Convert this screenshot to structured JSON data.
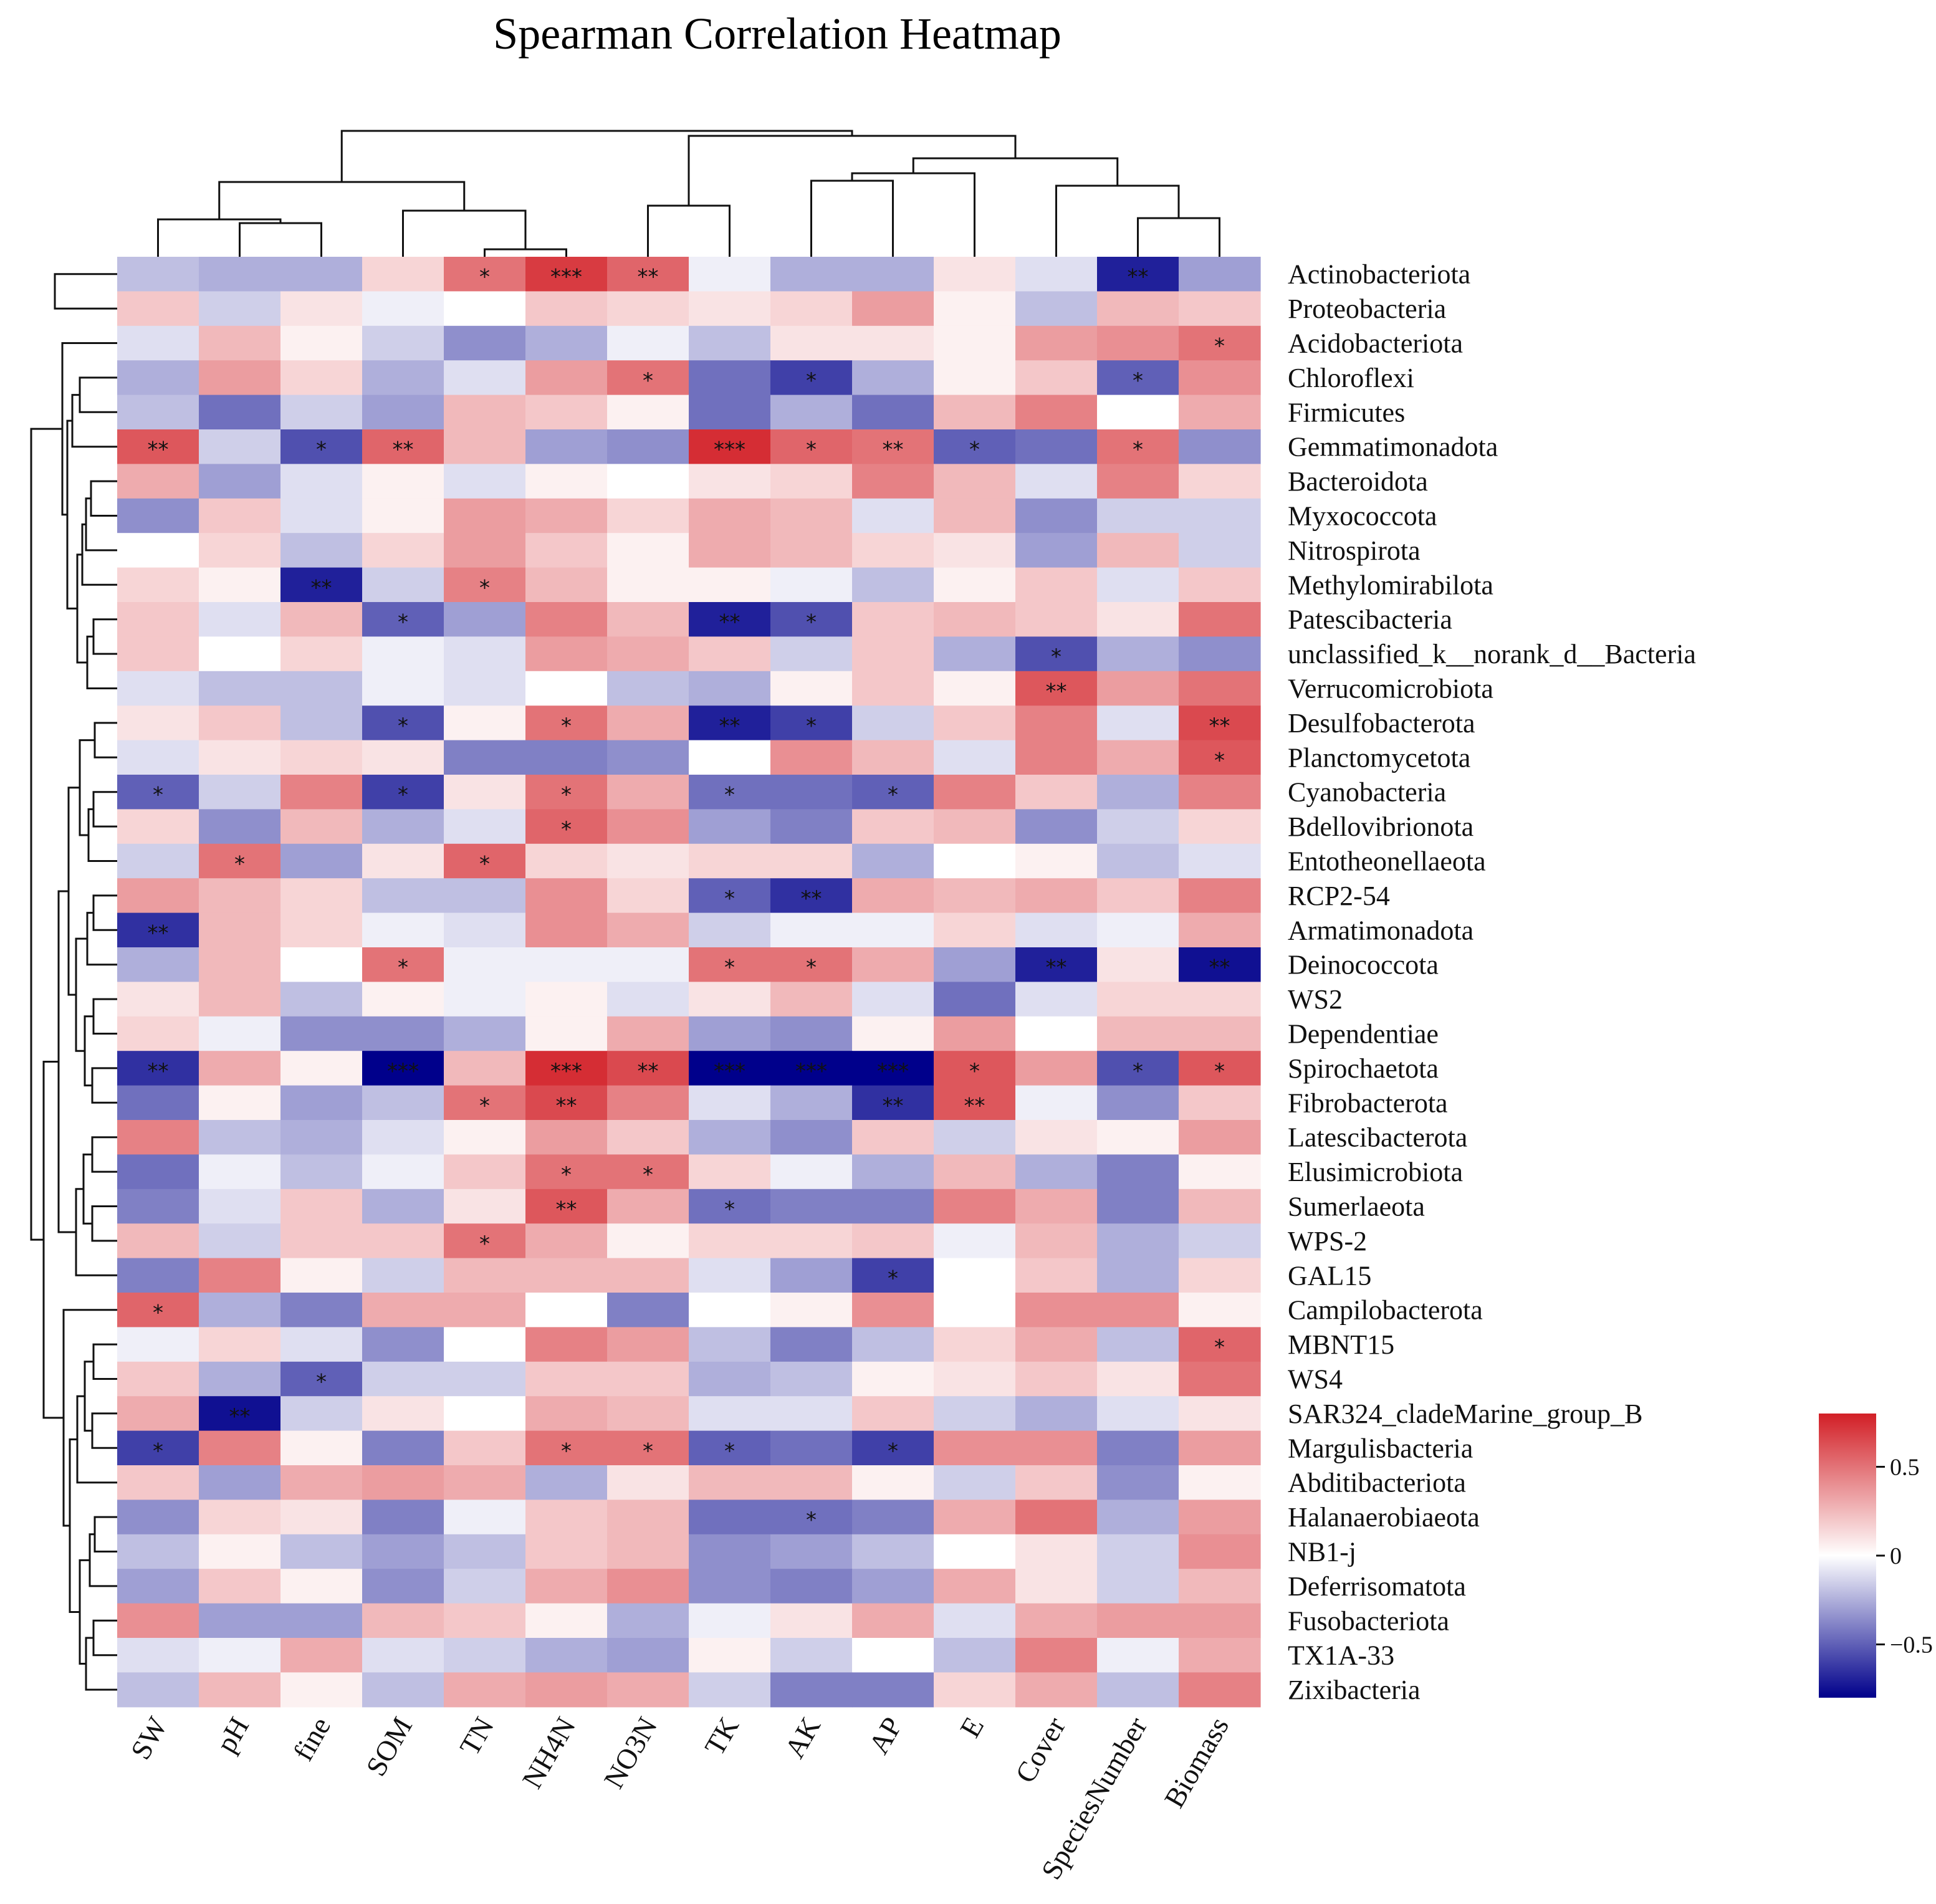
{
  "chart_data": {
    "type": "heatmap",
    "title": "Spearman Correlation Heatmap",
    "columns": [
      "SW",
      "pH",
      "fine",
      "SOM",
      "TN",
      "NH4N",
      "NO3N",
      "TK",
      "AK",
      "AP",
      "E",
      "Cover",
      "SpeciesNumber",
      "Biomass"
    ],
    "rows": [
      "Actinobacteriota",
      "Proteobacteria",
      "Acidobacteriota",
      "Chloroflexi",
      "Firmicutes",
      "Gemmatimonadota",
      "Bacteroidota",
      "Myxococcota",
      "Nitrospirota",
      "Methylomirabilota",
      "Patescibacteria",
      "unclassified_k__norank_d__Bacteria",
      "Verrucomicrobiota",
      "Desulfobacterota",
      "Planctomycetota",
      "Cyanobacteria",
      "Bdellovibrionota",
      "Entotheonellaeota",
      "RCP2-54",
      "Armatimonadota",
      "Deinococcota",
      "WS2",
      "Dependentiae",
      "Spirochaetota",
      "Fibrobacterota",
      "Latescibacterota",
      "Elusimicrobiota",
      "Sumerlaeota",
      "WPS-2",
      "GAL15",
      "Campilobacterota",
      "MBNT15",
      "WS4",
      "SAR324_cladeMarine_group_B",
      "Margulisbacteria",
      "Abditibacteriota",
      "Halanaerobiaeota",
      "NB1-j",
      "Deferrisomatota",
      "Fusobacteriota",
      "TX1A-33",
      "Zixibacteria"
    ],
    "values": [
      [
        -0.2,
        -0.25,
        -0.25,
        0.15,
        0.5,
        0.7,
        0.55,
        -0.05,
        -0.25,
        -0.25,
        0.1,
        -0.1,
        -0.7,
        -0.3
      ],
      [
        0.2,
        -0.15,
        0.1,
        -0.05,
        0,
        0.2,
        0.15,
        0.1,
        0.15,
        0.35,
        0.05,
        -0.2,
        0.25,
        0.2
      ],
      [
        -0.1,
        0.25,
        0.05,
        -0.15,
        -0.35,
        -0.25,
        -0.05,
        -0.2,
        0.1,
        0.1,
        0.05,
        0.35,
        0.4,
        0.5
      ],
      [
        -0.25,
        0.35,
        0.15,
        -0.25,
        -0.1,
        0.35,
        0.5,
        -0.45,
        -0.6,
        -0.25,
        0.05,
        0.2,
        -0.5,
        0.4
      ],
      [
        -0.2,
        -0.45,
        -0.15,
        -0.3,
        0.25,
        0.2,
        0.05,
        -0.45,
        -0.25,
        -0.45,
        0.25,
        0.45,
        0,
        0.3
      ],
      [
        0.6,
        -0.15,
        -0.55,
        0.55,
        0.25,
        -0.3,
        -0.35,
        0.75,
        0.55,
        0.5,
        -0.5,
        -0.45,
        0.5,
        -0.35
      ],
      [
        0.3,
        -0.3,
        -0.1,
        0.05,
        -0.1,
        0.05,
        0,
        0.1,
        0.15,
        0.45,
        0.25,
        -0.1,
        0.45,
        0.15
      ],
      [
        -0.35,
        0.2,
        -0.1,
        0.05,
        0.35,
        0.3,
        0.15,
        0.3,
        0.25,
        -0.1,
        0.25,
        -0.35,
        -0.15,
        -0.15
      ],
      [
        0,
        0.15,
        -0.2,
        0.15,
        0.35,
        0.2,
        0.05,
        0.3,
        0.25,
        0.15,
        0.1,
        -0.3,
        0.25,
        -0.15
      ],
      [
        0.15,
        0.05,
        -0.7,
        -0.15,
        0.45,
        0.25,
        0.05,
        0.05,
        -0.05,
        -0.2,
        0.05,
        0.2,
        -0.1,
        0.2
      ],
      [
        0.2,
        -0.1,
        0.25,
        -0.5,
        -0.3,
        0.45,
        0.25,
        -0.7,
        -0.55,
        0.2,
        0.25,
        0.2,
        0.1,
        0.5
      ],
      [
        0.2,
        0,
        0.15,
        -0.05,
        -0.1,
        0.35,
        0.3,
        0.2,
        -0.15,
        0.2,
        -0.25,
        -0.55,
        -0.25,
        -0.35
      ],
      [
        -0.1,
        -0.2,
        -0.2,
        -0.05,
        -0.1,
        0,
        -0.2,
        -0.25,
        0.05,
        0.2,
        0.05,
        0.6,
        0.35,
        0.5
      ],
      [
        0.1,
        0.2,
        -0.2,
        -0.55,
        0.05,
        0.5,
        0.3,
        -0.7,
        -0.6,
        -0.15,
        0.2,
        0.45,
        -0.1,
        0.65
      ],
      [
        -0.1,
        0.1,
        0.15,
        0.1,
        -0.4,
        -0.4,
        -0.35,
        0,
        0.4,
        0.25,
        -0.1,
        0.45,
        0.3,
        0.6
      ],
      [
        -0.5,
        -0.15,
        0.45,
        -0.6,
        0.1,
        0.5,
        0.3,
        -0.45,
        -0.45,
        -0.5,
        0.45,
        0.2,
        -0.25,
        0.45
      ],
      [
        0.15,
        -0.35,
        0.25,
        -0.25,
        -0.1,
        0.55,
        0.4,
        -0.3,
        -0.4,
        0.2,
        0.25,
        -0.35,
        -0.15,
        0.15
      ],
      [
        -0.15,
        0.5,
        -0.3,
        0.1,
        0.55,
        0.15,
        0.1,
        0.15,
        0.15,
        -0.25,
        0,
        0.05,
        -0.2,
        -0.1
      ],
      [
        0.35,
        0.25,
        0.15,
        -0.2,
        -0.2,
        0.4,
        0.15,
        -0.5,
        -0.65,
        0.3,
        0.25,
        0.3,
        0.2,
        0.45
      ],
      [
        -0.65,
        0.25,
        0.15,
        -0.05,
        -0.1,
        0.4,
        0.3,
        -0.15,
        -0.05,
        -0.05,
        0.15,
        -0.1,
        -0.05,
        0.3
      ],
      [
        -0.25,
        0.25,
        0,
        0.5,
        -0.05,
        -0.05,
        -0.05,
        0.5,
        0.5,
        0.3,
        -0.3,
        -0.7,
        0.1,
        -0.75
      ],
      [
        0.1,
        0.25,
        -0.2,
        0.05,
        -0.05,
        0.05,
        -0.1,
        0.1,
        0.25,
        -0.1,
        -0.45,
        -0.1,
        0.15,
        0.15
      ],
      [
        0.15,
        -0.05,
        -0.35,
        -0.35,
        -0.25,
        0.05,
        0.3,
        -0.3,
        -0.35,
        0.05,
        0.35,
        0,
        0.25,
        0.25
      ],
      [
        -0.65,
        0.3,
        0.05,
        -0.85,
        0.25,
        0.75,
        0.65,
        -0.85,
        -0.85,
        -0.85,
        0.6,
        0.35,
        -0.55,
        0.6
      ],
      [
        -0.45,
        0.05,
        -0.3,
        -0.2,
        0.5,
        0.65,
        0.45,
        -0.1,
        -0.25,
        -0.65,
        0.6,
        -0.05,
        -0.35,
        0.2
      ],
      [
        0.45,
        -0.2,
        -0.25,
        -0.1,
        0.05,
        0.35,
        0.2,
        -0.25,
        -0.35,
        0.2,
        -0.15,
        0.1,
        0.05,
        0.35
      ],
      [
        -0.45,
        -0.05,
        -0.2,
        -0.05,
        0.2,
        0.5,
        0.5,
        0.15,
        -0.05,
        -0.25,
        0.25,
        -0.25,
        -0.4,
        0.05
      ],
      [
        -0.4,
        -0.1,
        0.2,
        -0.25,
        0.1,
        0.6,
        0.3,
        -0.45,
        -0.4,
        -0.4,
        0.45,
        0.3,
        -0.4,
        0.25
      ],
      [
        0.25,
        -0.15,
        0.2,
        0.2,
        0.5,
        0.3,
        0.05,
        0.15,
        0.15,
        0.2,
        -0.05,
        0.25,
        -0.25,
        -0.15
      ],
      [
        -0.4,
        0.45,
        0.05,
        -0.15,
        0.25,
        0.25,
        0.25,
        -0.1,
        -0.3,
        -0.6,
        0,
        0.2,
        -0.25,
        0.15
      ],
      [
        0.55,
        -0.25,
        -0.4,
        0.3,
        0.3,
        0,
        -0.4,
        0,
        0.05,
        0.4,
        0,
        0.4,
        0.4,
        0.05
      ],
      [
        -0.05,
        0.15,
        -0.1,
        -0.35,
        0,
        0.45,
        0.35,
        -0.2,
        -0.4,
        -0.2,
        0.15,
        0.3,
        -0.2,
        0.55
      ],
      [
        0.2,
        -0.25,
        -0.5,
        -0.15,
        -0.15,
        0.2,
        0.2,
        -0.25,
        -0.2,
        0.05,
        0.1,
        0.2,
        0.1,
        0.5
      ],
      [
        0.3,
        -0.75,
        -0.15,
        0.1,
        0,
        0.3,
        0.25,
        -0.1,
        -0.1,
        0.2,
        -0.15,
        -0.25,
        -0.1,
        0.1
      ],
      [
        -0.6,
        0.45,
        0.05,
        -0.4,
        0.2,
        0.5,
        0.5,
        -0.5,
        -0.45,
        -0.6,
        0.4,
        0.4,
        -0.4,
        0.35
      ],
      [
        0.2,
        -0.3,
        0.3,
        0.35,
        0.3,
        -0.25,
        0.1,
        0.25,
        0.25,
        0.05,
        -0.15,
        0.2,
        -0.35,
        0.05
      ],
      [
        -0.35,
        0.15,
        0.1,
        -0.4,
        -0.05,
        0.2,
        0.25,
        -0.45,
        -0.45,
        -0.4,
        0.3,
        0.5,
        -0.25,
        0.35
      ],
      [
        -0.2,
        0.05,
        -0.2,
        -0.3,
        -0.2,
        0.2,
        0.25,
        -0.35,
        -0.3,
        -0.2,
        0,
        0.1,
        -0.15,
        0.4
      ],
      [
        -0.3,
        0.2,
        0.05,
        -0.35,
        -0.15,
        0.3,
        0.4,
        -0.35,
        -0.4,
        -0.3,
        0.3,
        0.1,
        -0.15,
        0.25
      ],
      [
        0.4,
        -0.3,
        -0.3,
        0.25,
        0.2,
        0.05,
        -0.25,
        -0.05,
        0.1,
        0.3,
        -0.1,
        0.3,
        0.35,
        0.35
      ],
      [
        -0.1,
        -0.05,
        0.3,
        -0.1,
        -0.15,
        -0.25,
        -0.3,
        0.05,
        -0.15,
        0,
        -0.2,
        0.45,
        -0.05,
        0.3
      ],
      [
        -0.2,
        0.25,
        0.05,
        -0.2,
        0.3,
        0.35,
        0.3,
        -0.15,
        -0.4,
        -0.4,
        0.15,
        0.3,
        -0.2,
        0.45
      ]
    ],
    "significance": [
      [
        "",
        "",
        "",
        "",
        "*",
        "***",
        "**",
        "",
        "",
        "",
        "",
        "",
        "**",
        ""
      ],
      [
        "",
        "",
        "",
        "",
        "",
        "",
        "",
        "",
        "",
        "",
        "",
        "",
        "",
        ""
      ],
      [
        "",
        "",
        "",
        "",
        "",
        "",
        "",
        "",
        "",
        "",
        "",
        "",
        "",
        "*"
      ],
      [
        "",
        "",
        "",
        "",
        "",
        "",
        "*",
        "",
        "*",
        "",
        "",
        "",
        "*",
        ""
      ],
      [
        "",
        "",
        "",
        "",
        "",
        "",
        "",
        "",
        "",
        "",
        "",
        "",
        "",
        ""
      ],
      [
        "**",
        "",
        "*",
        "**",
        "",
        "",
        "",
        "***",
        "*",
        "**",
        "*",
        "",
        "*",
        ""
      ],
      [
        "",
        "",
        "",
        "",
        "",
        "",
        "",
        "",
        "",
        "",
        "",
        "",
        "",
        ""
      ],
      [
        "",
        "",
        "",
        "",
        "",
        "",
        "",
        "",
        "",
        "",
        "",
        "",
        "",
        ""
      ],
      [
        "",
        "",
        "",
        "",
        "",
        "",
        "",
        "",
        "",
        "",
        "",
        "",
        "",
        ""
      ],
      [
        "",
        "",
        "**",
        "",
        "*",
        "",
        "",
        "",
        "",
        "",
        "",
        "",
        "",
        ""
      ],
      [
        "",
        "",
        "",
        "*",
        "",
        "",
        "",
        "**",
        "*",
        "",
        "",
        "",
        "",
        ""
      ],
      [
        "",
        "",
        "",
        "",
        "",
        "",
        "",
        "",
        "",
        "",
        "",
        "*",
        "",
        ""
      ],
      [
        "",
        "",
        "",
        "",
        "",
        "",
        "",
        "",
        "",
        "",
        "",
        "**",
        "",
        ""
      ],
      [
        "",
        "",
        "",
        "*",
        "",
        "*",
        "",
        "**",
        "*",
        "",
        "",
        "",
        "",
        "**"
      ],
      [
        "",
        "",
        "",
        "",
        "",
        "",
        "",
        "",
        "",
        "",
        "",
        "",
        "",
        "*"
      ],
      [
        "*",
        "",
        "",
        "*",
        "",
        "*",
        "",
        "*",
        "",
        "*",
        "",
        "",
        "",
        ""
      ],
      [
        "",
        "",
        "",
        "",
        "",
        "*",
        "",
        "",
        "",
        "",
        "",
        "",
        "",
        ""
      ],
      [
        "",
        "*",
        "",
        "",
        "*",
        "",
        "",
        "",
        "",
        "",
        "",
        "",
        "",
        ""
      ],
      [
        "",
        "",
        "",
        "",
        "",
        "",
        "",
        "*",
        "**",
        "",
        "",
        "",
        "",
        ""
      ],
      [
        "**",
        "",
        "",
        "",
        "",
        "",
        "",
        "",
        "",
        "",
        "",
        "",
        "",
        ""
      ],
      [
        "",
        "",
        "",
        "*",
        "",
        "",
        "",
        "*",
        "*",
        "",
        "",
        "**",
        "",
        "**"
      ],
      [
        "",
        "",
        "",
        "",
        "",
        "",
        "",
        "",
        "",
        "",
        "",
        "",
        "",
        ""
      ],
      [
        "",
        "",
        "",
        "",
        "",
        "",
        "",
        "",
        "",
        "",
        "",
        "",
        "",
        ""
      ],
      [
        "**",
        "",
        "",
        "***",
        "",
        "***",
        "**",
        "***",
        "***",
        "***",
        "*",
        "",
        "*",
        "*"
      ],
      [
        "",
        "",
        "",
        "",
        "*",
        "**",
        "",
        "",
        "",
        "**",
        "**",
        "",
        "",
        ""
      ],
      [
        "",
        "",
        "",
        "",
        "",
        "",
        "",
        "",
        "",
        "",
        "",
        "",
        "",
        ""
      ],
      [
        "",
        "",
        "",
        "",
        "",
        "*",
        "*",
        "",
        "",
        "",
        "",
        "",
        "",
        ""
      ],
      [
        "",
        "",
        "",
        "",
        "",
        "**",
        "",
        "*",
        "",
        "",
        "",
        "",
        "",
        ""
      ],
      [
        "",
        "",
        "",
        "",
        "*",
        "",
        "",
        "",
        "",
        "",
        "",
        "",
        "",
        ""
      ],
      [
        "",
        "",
        "",
        "",
        "",
        "",
        "",
        "",
        "",
        "*",
        "",
        "",
        "",
        ""
      ],
      [
        "*",
        "",
        "",
        "",
        "",
        "",
        "",
        "",
        "",
        "",
        "",
        "",
        "",
        ""
      ],
      [
        "",
        "",
        "",
        "",
        "",
        "",
        "",
        "",
        "",
        "",
        "",
        "",
        "",
        "*"
      ],
      [
        "",
        "",
        "*",
        "",
        "",
        "",
        "",
        "",
        "",
        "",
        "",
        "",
        "",
        ""
      ],
      [
        "",
        "**",
        "",
        "",
        "",
        "",
        "",
        "",
        "",
        "",
        "",
        "",
        "",
        ""
      ],
      [
        "*",
        "",
        "",
        "",
        "",
        "*",
        "*",
        "*",
        "",
        "*",
        "",
        "",
        "",
        ""
      ],
      [
        "",
        "",
        "",
        "",
        "",
        "",
        "",
        "",
        "",
        "",
        "",
        "",
        "",
        ""
      ],
      [
        "",
        "",
        "",
        "",
        "",
        "",
        "",
        "",
        "*",
        "",
        "",
        "",
        "",
        ""
      ],
      [
        "",
        "",
        "",
        "",
        "",
        "",
        "",
        "",
        "",
        "",
        "",
        "",
        "",
        ""
      ],
      [
        "",
        "",
        "",
        "",
        "",
        "",
        "",
        "",
        "",
        "",
        "",
        "",
        "",
        ""
      ],
      [
        "",
        "",
        "",
        "",
        "",
        "",
        "",
        "",
        "",
        "",
        "",
        "",
        "",
        ""
      ],
      [
        "",
        "",
        "",
        "",
        "",
        "",
        "",
        "",
        "",
        "",
        "",
        "",
        "",
        ""
      ],
      [
        "",
        "",
        "",
        "",
        "",
        "",
        "",
        "",
        "",
        "",
        "",
        "",
        "",
        ""
      ]
    ],
    "color_scale": {
      "min": -0.8,
      "max": 0.8,
      "low_color": "#00008b",
      "mid_color": "#ffffff",
      "high_color": "#d21f26",
      "ticks": [
        -0.5,
        0,
        0.5
      ],
      "tick_labels": [
        "−0.5",
        "0",
        "0.5"
      ]
    },
    "legend_position": "right",
    "column_dendrogram": true,
    "row_dendrogram": true
  }
}
